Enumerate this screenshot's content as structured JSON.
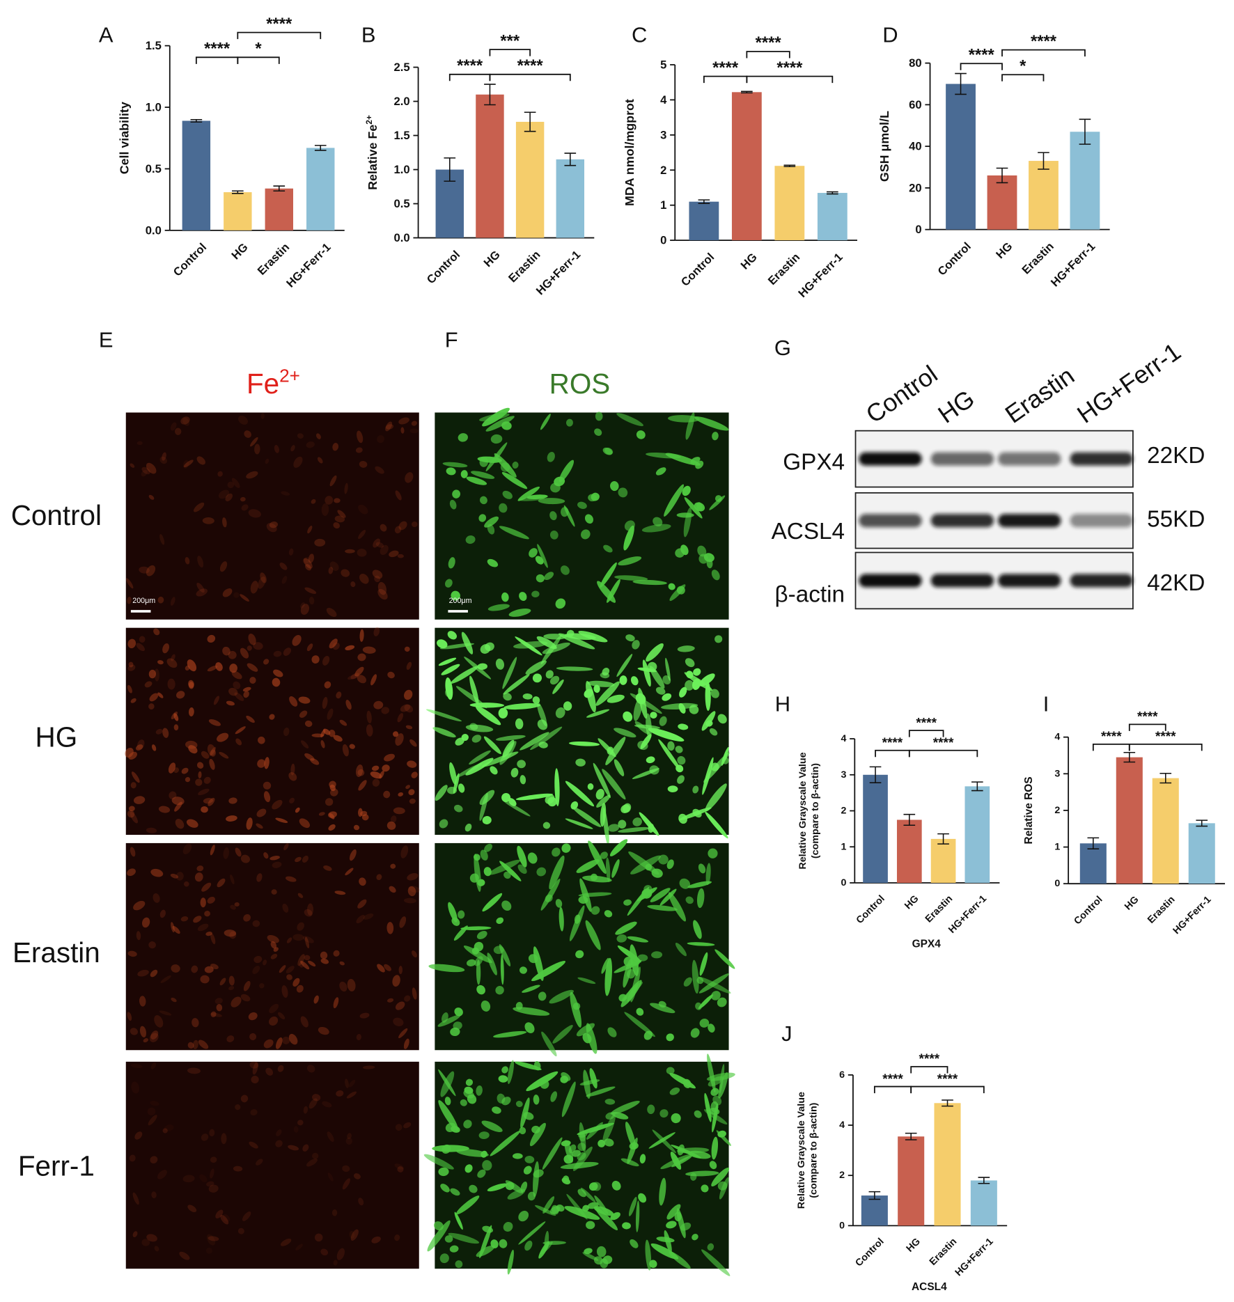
{
  "chart_data": [
    {
      "type": "bar",
      "panel": "A",
      "ylabel": "Cell viability",
      "categories": [
        "Control",
        "HG",
        "Erastin",
        "HG+Ferr-1"
      ],
      "values": [
        0.89,
        0.31,
        0.34,
        0.67
      ],
      "errors": [
        0.01,
        0.01,
        0.02,
        0.02
      ],
      "colors": [
        "#4a6b94",
        "#f5cd6b",
        "#c8604f",
        "#8cbfd6"
      ],
      "ylim": [
        0,
        1.5
      ],
      "yticks": [
        {
          "value": 0,
          "label": "0.0"
        },
        0.5,
        {
          "value": 1,
          "label": "1.0"
        },
        1.5
      ],
      "annotations": [
        {
          "from": "Control",
          "to": "HG",
          "label": "****"
        },
        {
          "from": "HG",
          "to": "Erastin",
          "label": "*"
        },
        {
          "from": "HG",
          "to": "HG+Ferr-1",
          "label": "****"
        }
      ]
    },
    {
      "type": "bar",
      "panel": "B",
      "ylabel": "Relative Fe",
      "ylabel_superscript": "2+",
      "categories": [
        "Control",
        "HG",
        "Erastin",
        "HG+Ferr-1"
      ],
      "values": [
        1.0,
        2.1,
        1.7,
        1.15
      ],
      "errors": [
        0.17,
        0.15,
        0.14,
        0.09
      ],
      "colors": [
        "#4a6b94",
        "#c8604f",
        "#f5cd6b",
        "#8cbfd6"
      ],
      "ylim": [
        0,
        2.5
      ],
      "yticks": [
        {
          "value": 0,
          "label": "0.0"
        },
        0.5,
        {
          "value": 1,
          "label": "1.0"
        },
        1.5,
        {
          "value": 2,
          "label": "2.0"
        },
        2.5
      ],
      "annotations": [
        {
          "from": "Control",
          "to": "HG",
          "label": "****"
        },
        {
          "from": "HG",
          "to": "HG+Ferr-1",
          "label": "****"
        },
        {
          "from": "HG",
          "to": "Erastin",
          "label": "***"
        }
      ]
    },
    {
      "type": "bar",
      "panel": "C",
      "ylabel": "MDA nmol/mgprot",
      "categories": [
        "Control",
        "HG",
        "Erastin",
        "HG+Ferr-1"
      ],
      "values": [
        1.1,
        4.22,
        2.12,
        1.35
      ],
      "errors": [
        0.05,
        0.02,
        0.02,
        0.03
      ],
      "colors": [
        "#4a6b94",
        "#c8604f",
        "#f5cd6b",
        "#8cbfd6"
      ],
      "ylim": [
        0,
        5
      ],
      "yticks": [
        0,
        1,
        2,
        3,
        4,
        5
      ],
      "annotations": [
        {
          "from": "Control",
          "to": "HG",
          "label": "****"
        },
        {
          "from": "HG",
          "to": "HG+Ferr-1",
          "label": "****"
        },
        {
          "from": "HG",
          "to": "Erastin",
          "label": "****"
        }
      ]
    },
    {
      "type": "bar",
      "panel": "D",
      "ylabel": "GSH μmol/L",
      "categories": [
        "Control",
        "HG",
        "Erastin",
        "HG+Ferr-1"
      ],
      "values": [
        70,
        26,
        33,
        47
      ],
      "errors": [
        5,
        3.5,
        4,
        6
      ],
      "colors": [
        "#4a6b94",
        "#c8604f",
        "#f5cd6b",
        "#8cbfd6"
      ],
      "ylim": [
        0,
        80
      ],
      "yticks": [
        0,
        20,
        40,
        60,
        80
      ],
      "annotations": [
        {
          "from": "Control",
          "to": "HG",
          "label": "****"
        },
        {
          "from": "HG",
          "to": "Erastin",
          "label": "*"
        },
        {
          "from": "HG",
          "to": "HG+Ferr-1",
          "label": "****"
        }
      ]
    },
    {
      "type": "bar",
      "panel": "H",
      "ylabel": [
        "Relative Grayscale Value",
        "(compare to β-actin)"
      ],
      "xlabel": "GPX4",
      "categories": [
        "Control",
        "HG",
        "Erastin",
        "HG+Ferr-1"
      ],
      "values": [
        3.0,
        1.75,
        1.22,
        2.68
      ],
      "errors": [
        0.22,
        0.15,
        0.14,
        0.12
      ],
      "colors": [
        "#4a6b94",
        "#c8604f",
        "#f5cd6b",
        "#8cbfd6"
      ],
      "ylim": [
        0,
        4
      ],
      "yticks": [
        0,
        1,
        2,
        3,
        4
      ],
      "annotations": [
        {
          "from": "Control",
          "to": "HG",
          "label": "****"
        },
        {
          "from": "HG",
          "to": "HG+Ferr-1",
          "label": "****"
        },
        {
          "from": "HG",
          "to": "Erastin",
          "label": "****"
        }
      ]
    },
    {
      "type": "bar",
      "panel": "I",
      "ylabel": "Relative ROS",
      "categories": [
        "Control",
        "HG",
        "Erastin",
        "HG+Ferr-1"
      ],
      "values": [
        1.1,
        3.45,
        2.88,
        1.65
      ],
      "errors": [
        0.15,
        0.13,
        0.13,
        0.08
      ],
      "colors": [
        "#4a6b94",
        "#c8604f",
        "#f5cd6b",
        "#8cbfd6"
      ],
      "ylim": [
        0,
        4
      ],
      "yticks": [
        0,
        1,
        2,
        3,
        4
      ],
      "annotations": [
        {
          "from": "Control",
          "to": "HG",
          "label": "****"
        },
        {
          "from": "HG",
          "to": "HG+Ferr-1",
          "label": "****"
        },
        {
          "from": "HG",
          "to": "Erastin",
          "label": "****"
        }
      ]
    },
    {
      "type": "bar",
      "panel": "J",
      "ylabel": [
        "Relative Grayscale Value",
        "(compare to β-actin)"
      ],
      "xlabel": "ACSL4",
      "categories": [
        "Control",
        "HG",
        "Erastin",
        "HG+Ferr-1"
      ],
      "values": [
        1.2,
        3.55,
        4.88,
        1.8
      ],
      "errors": [
        0.15,
        0.13,
        0.12,
        0.12
      ],
      "colors": [
        "#4a6b94",
        "#c8604f",
        "#f5cd6b",
        "#8cbfd6"
      ],
      "ylim": [
        0,
        6
      ],
      "yticks": [
        0,
        2,
        4,
        6
      ],
      "annotations": [
        {
          "from": "Control",
          "to": "HG",
          "label": "****"
        },
        {
          "from": "HG",
          "to": "HG+Ferr-1",
          "label": "****"
        },
        {
          "from": "HG",
          "to": "Erastin",
          "label": "****"
        }
      ]
    }
  ],
  "fluorescence": {
    "panels": [
      "E",
      "F"
    ],
    "fe_title": "Fe",
    "fe_superscript": "2+",
    "ros_title": "ROS",
    "rows": [
      "Control",
      "HG",
      "Erastin",
      "Ferr-1"
    ],
    "scale_bar": "200μm"
  },
  "western_blot": {
    "panel": "G",
    "lanes": [
      "Control",
      "HG",
      "Erastin",
      "HG+Ferr-1"
    ],
    "proteins": [
      {
        "name": "GPX4",
        "size": "22KD"
      },
      {
        "name": "ACSL4",
        "size": "55KD"
      },
      {
        "name": "β-actin",
        "size": "42KD"
      }
    ]
  }
}
